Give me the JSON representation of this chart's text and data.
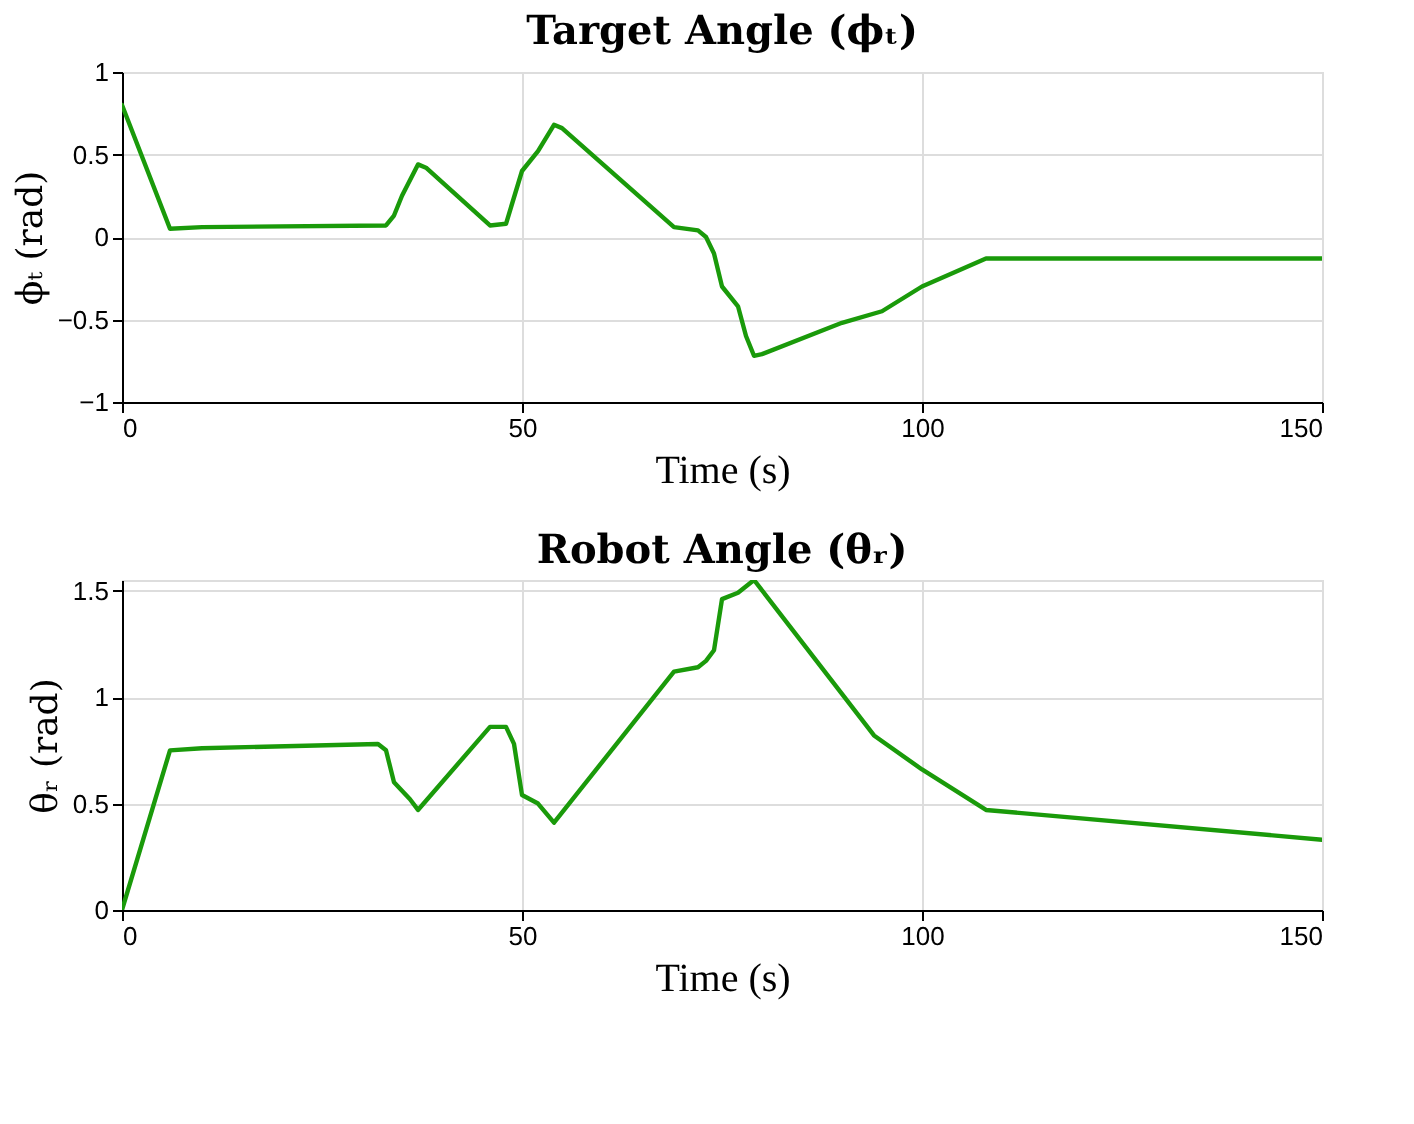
{
  "chart_data": [
    {
      "type": "line",
      "title": "Target Angle (ϕₜ)",
      "xlabel": "Time (s)",
      "ylabel": "ϕₜ (rad)",
      "xlim": [
        0,
        150
      ],
      "xticks": [
        0,
        50,
        100,
        150
      ],
      "ylim": [
        -1,
        1
      ],
      "yticks": [
        -1,
        -0.5,
        0,
        0.5,
        1
      ],
      "grid": true,
      "marker": "none",
      "line_style": "solid",
      "x": [
        0,
        6,
        10,
        33,
        34,
        35,
        37,
        38,
        46,
        48,
        50,
        52,
        54,
        55,
        69,
        72,
        73,
        74,
        75,
        77,
        78,
        79,
        80,
        90,
        95,
        100,
        108,
        150
      ],
      "series": [
        {
          "color": "#1a9a0a",
          "values": [
            0.8,
            0.05,
            0.06,
            0.07,
            0.13,
            0.25,
            0.44,
            0.42,
            0.07,
            0.08,
            0.4,
            0.52,
            0.68,
            0.66,
            0.06,
            0.04,
            0.0,
            -0.1,
            -0.3,
            -0.42,
            -0.6,
            -0.72,
            -0.71,
            -0.52,
            -0.45,
            -0.3,
            -0.13,
            -0.13
          ]
        }
      ]
    },
    {
      "type": "line",
      "title": "Robot Angle (θᵣ)",
      "xlabel": "Time (s)",
      "ylabel": "θᵣ (rad)",
      "xlim": [
        0,
        150
      ],
      "xticks": [
        0,
        50,
        100,
        150
      ],
      "ylim": [
        0,
        1.55
      ],
      "yticks": [
        0,
        0.5,
        1,
        1.5
      ],
      "grid": true,
      "marker": "none",
      "line_style": "solid",
      "x": [
        0,
        6,
        10,
        32,
        33,
        34,
        36,
        37,
        46,
        48,
        49,
        50,
        52,
        54,
        69,
        72,
        73,
        74,
        75,
        77,
        79,
        94,
        100,
        108,
        150
      ],
      "series": [
        {
          "color": "#1a9a0a",
          "values": [
            0,
            0.75,
            0.76,
            0.78,
            0.75,
            0.6,
            0.52,
            0.47,
            0.86,
            0.86,
            0.78,
            0.54,
            0.5,
            0.41,
            1.12,
            1.14,
            1.17,
            1.22,
            1.46,
            1.49,
            1.55,
            0.82,
            0.66,
            0.47,
            0.33
          ]
        }
      ]
    }
  ]
}
